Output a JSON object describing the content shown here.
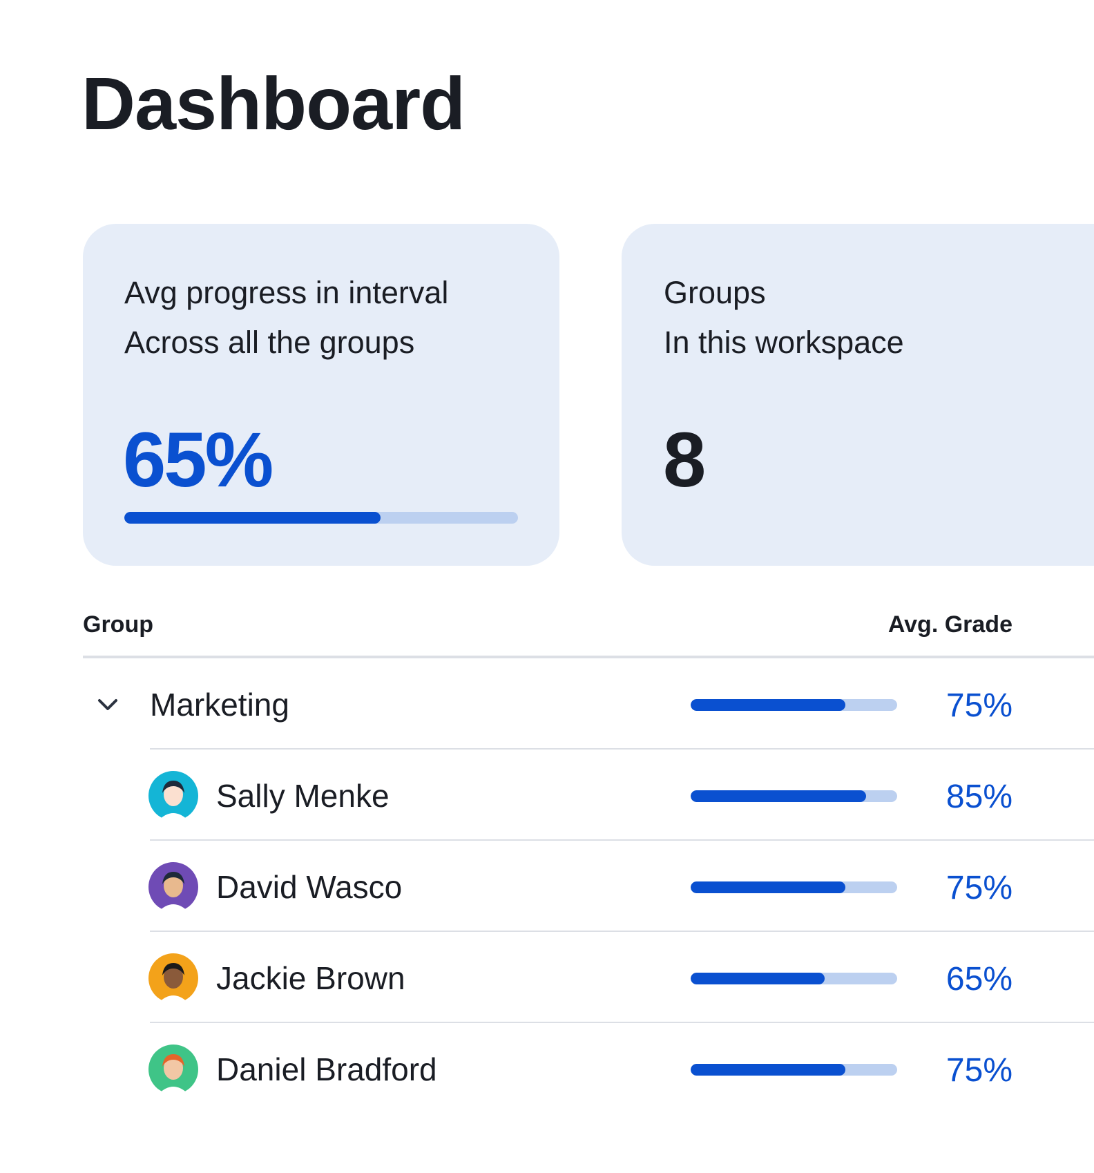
{
  "header": {
    "title": "Dashboard"
  },
  "cards": [
    {
      "title": "Avg progress in interval",
      "subtitle": "Across all the groups",
      "value": 65,
      "value_label": "65%"
    },
    {
      "title": "Groups",
      "subtitle": "In this workspace",
      "value": 8
    }
  ],
  "table": {
    "columns": [
      "Group",
      "Avg. Grade"
    ],
    "groups": [
      {
        "name": "Marketing",
        "grade": 75,
        "grade_label": "75%",
        "members": [
          {
            "name": "Sally Menke",
            "grade": 85,
            "grade_label": "85%"
          },
          {
            "name": "David Wasco",
            "grade": 75,
            "grade_label": "75%"
          },
          {
            "name": "Jackie Brown",
            "grade": 65,
            "grade_label": "65%"
          },
          {
            "name": "Daniel Bradford",
            "grade": 75,
            "grade_label": "75%"
          }
        ]
      }
    ]
  }
}
